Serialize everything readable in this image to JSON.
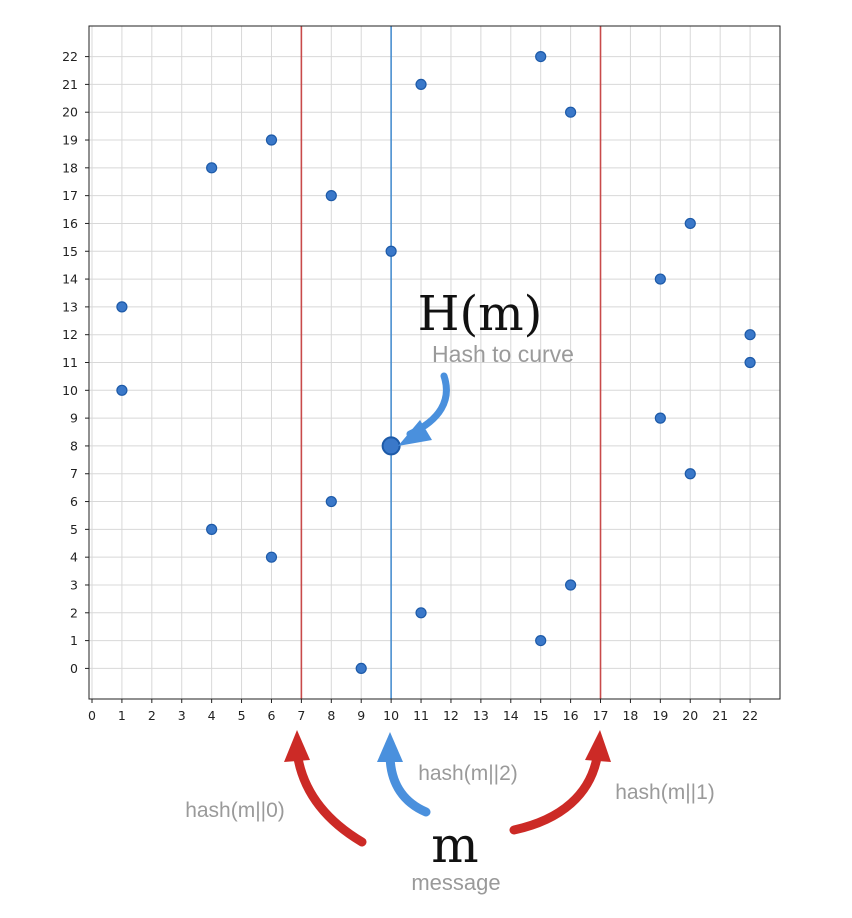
{
  "chart_data": {
    "type": "scatter",
    "title": "",
    "xlabel": "",
    "ylabel": "",
    "xlim": [
      -0.1,
      23
    ],
    "ylim": [
      -1.1,
      23.1
    ],
    "x_ticks": [
      "0",
      "1",
      "2",
      "3",
      "4",
      "5",
      "6",
      "7",
      "8",
      "9",
      "10",
      "11",
      "12",
      "13",
      "14",
      "15",
      "16",
      "17",
      "18",
      "19",
      "20",
      "21",
      "22"
    ],
    "y_ticks": [
      "0",
      "1",
      "2",
      "3",
      "4",
      "5",
      "6",
      "7",
      "8",
      "9",
      "10",
      "11",
      "12",
      "13",
      "14",
      "15",
      "16",
      "17",
      "18",
      "19",
      "20",
      "21",
      "22"
    ],
    "grid": true,
    "point_color": "#3a78c9",
    "points": [
      {
        "x": 1,
        "y": 13
      },
      {
        "x": 1,
        "y": 10
      },
      {
        "x": 4,
        "y": 18
      },
      {
        "x": 4,
        "y": 5
      },
      {
        "x": 6,
        "y": 19
      },
      {
        "x": 6,
        "y": 4
      },
      {
        "x": 8,
        "y": 17
      },
      {
        "x": 8,
        "y": 6
      },
      {
        "x": 9,
        "y": 0
      },
      {
        "x": 10,
        "y": 15
      },
      {
        "x": 10,
        "y": 8
      },
      {
        "x": 11,
        "y": 21
      },
      {
        "x": 11,
        "y": 2
      },
      {
        "x": 15,
        "y": 22
      },
      {
        "x": 15,
        "y": 1
      },
      {
        "x": 16,
        "y": 20
      },
      {
        "x": 16,
        "y": 3
      },
      {
        "x": 19,
        "y": 14
      },
      {
        "x": 19,
        "y": 9
      },
      {
        "x": 20,
        "y": 16
      },
      {
        "x": 20,
        "y": 7
      },
      {
        "x": 22,
        "y": 12
      },
      {
        "x": 22,
        "y": 11
      }
    ],
    "highlight_point": {
      "x": 10,
      "y": 8
    },
    "vertical_lines": [
      {
        "x": 7,
        "color": "#c84a4a"
      },
      {
        "x": 10,
        "color": "#4a8fd0"
      },
      {
        "x": 17,
        "color": "#c84a4a"
      }
    ],
    "annotations": {
      "hm_label": "H(m)",
      "hash_to_curve": "Hash to curve",
      "hash0": "hash(m||0)",
      "hash1": "hash(m||1)",
      "hash2": "hash(m||2)",
      "m_label": "m",
      "message": "message"
    },
    "arrow_colors": {
      "red": "#cc2a26",
      "blue": "#4a90dd"
    }
  }
}
